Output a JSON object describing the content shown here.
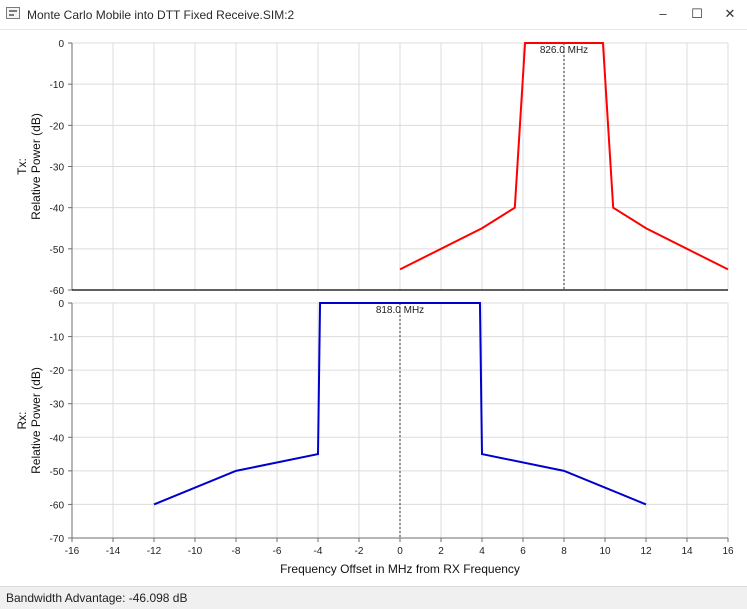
{
  "window": {
    "title": "Monte Carlo Mobile into DTT Fixed Receive.SIM:2",
    "minimize_glyph": "‒",
    "maximize_glyph": "☐",
    "close_glyph": "✕"
  },
  "status": {
    "text": "Bandwidth Advantage: -46.098 dB"
  },
  "colors": {
    "tx_series": "#ff0000",
    "rx_series": "#0000cc",
    "grid": "#dcdcdc",
    "axis": "#000000"
  },
  "chart_data": [
    {
      "type": "line",
      "panel": "top",
      "ylabel_line1": "Tx:",
      "ylabel_line2": "Relative Power (dB)",
      "ylim": [
        -60,
        0
      ],
      "yticks": [
        0,
        -10,
        -20,
        -30,
        -40,
        -50,
        -60
      ],
      "xlim": [
        -16,
        16
      ],
      "grid": true,
      "series": [
        {
          "x": [
            0,
            4,
            5.6,
            6.1,
            9.9,
            10.4,
            12,
            16
          ],
          "y": [
            -55,
            -45,
            -40,
            0,
            0,
            -40,
            -45,
            -55
          ]
        }
      ],
      "marker": {
        "x": 8,
        "label": "826.0 MHz"
      }
    },
    {
      "type": "line",
      "panel": "bottom",
      "ylabel_line1": "Rx:",
      "ylabel_line2": "Relative Power (dB)",
      "ylim": [
        -70,
        0
      ],
      "yticks": [
        0,
        -10,
        -20,
        -30,
        -40,
        -50,
        -60,
        -70
      ],
      "xlim": [
        -16,
        16
      ],
      "xticks": [
        -16,
        -14,
        -12,
        -10,
        -8,
        -6,
        -4,
        -2,
        0,
        2,
        4,
        6,
        8,
        10,
        12,
        14,
        16
      ],
      "xlabel": "Frequency Offset in MHz from RX Frequency",
      "grid": true,
      "series": [
        {
          "x": [
            -12,
            -8,
            -4,
            -3.9,
            3.9,
            4,
            8,
            12
          ],
          "y": [
            -60,
            -50,
            -45,
            0,
            0,
            -45,
            -50,
            -60
          ]
        }
      ],
      "marker": {
        "x": 0,
        "label": "818.0 MHz"
      }
    }
  ]
}
